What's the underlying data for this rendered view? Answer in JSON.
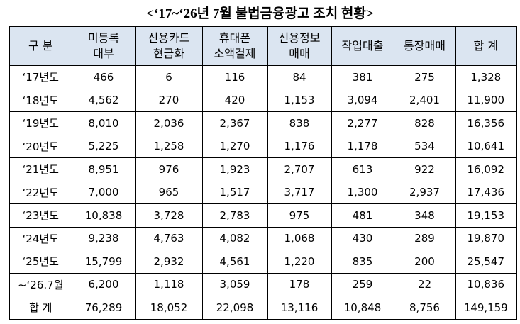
{
  "title": "<‘17~‘26년 7월 불법금융광고 조치 현황>",
  "table": {
    "header": [
      [
        "구 분"
      ],
      [
        "미등록",
        "대부"
      ],
      [
        "신용카드",
        "현금화"
      ],
      [
        "휴대폰",
        "소액결제"
      ],
      [
        "신용정보",
        "매매"
      ],
      [
        "작업대출"
      ],
      [
        "통장매매"
      ],
      [
        "합 계"
      ]
    ],
    "rows": [
      [
        "‘17년도",
        "466",
        "6",
        "116",
        "84",
        "381",
        "275",
        "1,328"
      ],
      [
        "‘18년도",
        "4,562",
        "270",
        "420",
        "1,153",
        "3,094",
        "2,401",
        "11,900"
      ],
      [
        "‘19년도",
        "8,010",
        "2,036",
        "2,367",
        "838",
        "2,277",
        "828",
        "16,356"
      ],
      [
        "‘20년도",
        "5,225",
        "1,258",
        "1,270",
        "1,176",
        "1,178",
        "534",
        "10,641"
      ],
      [
        "‘21년도",
        "8,951",
        "976",
        "1,923",
        "2,707",
        "613",
        "922",
        "16,092"
      ],
      [
        "‘22년도",
        "7,000",
        "965",
        "1,517",
        "3,717",
        "1,300",
        "2,937",
        "17,436"
      ],
      [
        "‘23년도",
        "10,838",
        "3,728",
        "2,783",
        "975",
        "481",
        "348",
        "19,153"
      ],
      [
        "‘24년도",
        "9,238",
        "4,763",
        "4,082",
        "1,068",
        "430",
        "289",
        "19,870"
      ],
      [
        "‘25년도",
        "15,799",
        "2,932",
        "4,561",
        "1,220",
        "835",
        "200",
        "25,547"
      ],
      [
        "~‘26.7월",
        "6,200",
        "1,118",
        "3,059",
        "178",
        "259",
        "22",
        "10,836"
      ],
      [
        "합 계",
        "76,289",
        "18,052",
        "22,098",
        "13,116",
        "10,848",
        "8,756",
        "149,159"
      ]
    ]
  }
}
